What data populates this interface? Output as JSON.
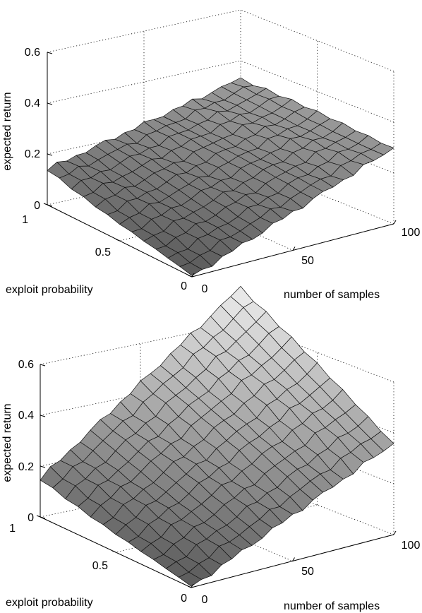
{
  "chart_data": [
    {
      "type": "surface",
      "xlabel": "exploit probability",
      "ylabel": "number of samples",
      "zlabel": "expected return",
      "xlim": [
        0,
        1
      ],
      "ylim": [
        0,
        100
      ],
      "zlim": [
        0,
        0.6
      ],
      "xticks": [
        "0",
        "0.5",
        "1"
      ],
      "yticks": [
        "0",
        "50",
        "100"
      ],
      "zticks": [
        "0",
        "0.2",
        "0.4",
        "0.6"
      ],
      "grid": true,
      "colormap": "gray",
      "corners": {
        "p0_n0": 0.0,
        "p1_n0": 0.14,
        "p0_n100": 0.3,
        "p1_n100": 0.33
      }
    },
    {
      "type": "surface",
      "xlabel": "exploit probability",
      "ylabel": "number of samples",
      "zlabel": "expected return",
      "xlim": [
        0,
        1
      ],
      "ylim": [
        0,
        100
      ],
      "zlim": [
        0,
        0.6
      ],
      "xticks": [
        "0",
        "0.5",
        "1"
      ],
      "yticks": [
        "0",
        "50",
        "100"
      ],
      "zticks": [
        "0",
        "0.2",
        "0.4",
        "0.6"
      ],
      "grid": true,
      "colormap": "gray",
      "corners": {
        "p0_n0": 0.0,
        "p1_n0": 0.15,
        "p0_n100": 0.36,
        "p1_n100": 0.74
      }
    }
  ]
}
